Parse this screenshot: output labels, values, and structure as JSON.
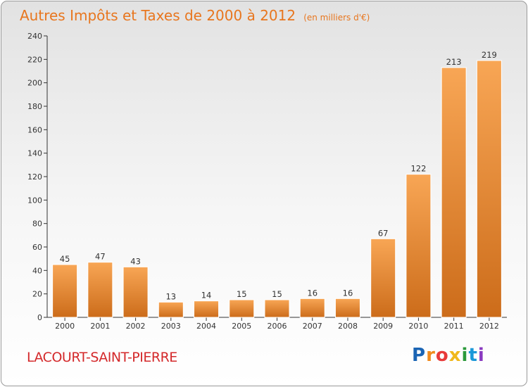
{
  "header": {
    "title": "Autres Impôts et Taxes de 2000 à 2012",
    "unit": "(en milliers d'€)"
  },
  "footer": {
    "commune": "LACOURT-SAINT-PIERRE",
    "logo_letters": [
      "P",
      "r",
      "o",
      "x",
      "i",
      "t",
      "i"
    ],
    "logo_colors": [
      "#1a64b4",
      "#f08a1c",
      "#e83a3a",
      "#f0b81c",
      "#2c9a3c",
      "#1a98d8",
      "#8a3ac0"
    ]
  },
  "colors": {
    "title": "#e8761e",
    "bar_light": "#f8a655",
    "bar_dark": "#cc6c1a",
    "axis": "#333333",
    "commune": "#d4292b"
  },
  "chart_data": {
    "type": "bar",
    "title": "Autres Impôts et Taxes de 2000 à 2012",
    "subtitle": "(en milliers d'€)",
    "categories": [
      "2000",
      "2001",
      "2002",
      "2003",
      "2004",
      "2005",
      "2006",
      "2007",
      "2008",
      "2009",
      "2010",
      "2011",
      "2012"
    ],
    "values": [
      45,
      47,
      43,
      13,
      14,
      15,
      15,
      16,
      16,
      67,
      122,
      213,
      219
    ],
    "xlabel": "",
    "ylabel": "",
    "ylim": [
      0,
      240
    ],
    "yticks": [
      0,
      20,
      40,
      60,
      80,
      100,
      120,
      140,
      160,
      180,
      200,
      220,
      240
    ],
    "grid": false,
    "legend": "none"
  }
}
